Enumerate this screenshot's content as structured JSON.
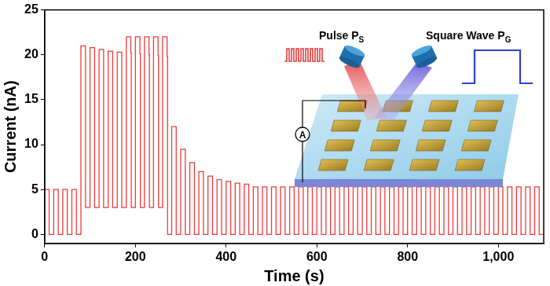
{
  "chart_data": {
    "type": "line",
    "x_label": "Time (s)",
    "y_label": "Current (nA)",
    "color": "#ee3b3b",
    "line_style": "steps",
    "grid": false,
    "xlim": [
      0,
      1100
    ],
    "xticks": [
      0,
      200,
      400,
      600,
      800,
      1000
    ],
    "ylim": [
      -1,
      25
    ],
    "yticks": [
      0,
      5,
      10,
      15,
      20,
      25
    ],
    "annotations": [
      {
        "text": "Pulse P",
        "subscript": "S"
      },
      {
        "text": "Square Wave P",
        "subscript": "G"
      },
      {
        "text": "A"
      }
    ],
    "x": [
      0,
      10,
      20,
      30,
      40,
      50,
      60,
      70,
      80,
      90,
      100,
      110,
      120,
      130,
      140,
      150,
      160,
      170,
      180,
      190,
      191,
      200,
      210,
      211,
      220,
      230,
      231,
      240,
      250,
      251,
      260,
      270,
      271,
      280,
      290,
      300,
      310,
      320,
      330,
      340,
      350,
      360,
      370,
      380,
      390,
      400,
      410,
      420,
      430,
      440,
      450,
      460,
      470,
      480,
      490,
      500,
      510,
      520,
      530,
      540,
      550,
      560,
      570,
      580,
      590,
      600,
      610,
      620,
      630,
      640,
      650,
      660,
      670,
      680,
      690,
      700,
      710,
      720,
      730,
      740,
      750,
      760,
      770,
      780,
      790,
      800,
      810,
      820,
      830,
      840,
      850,
      860,
      870,
      880,
      890,
      900,
      910,
      920,
      930,
      940,
      950,
      960,
      970,
      980,
      990,
      1000,
      1010,
      1020,
      1030,
      1040,
      1050,
      1060,
      1070,
      1080,
      1090,
      1100
    ],
    "values": [
      0,
      5,
      0,
      5,
      0,
      5,
      0,
      5,
      0,
      21,
      3,
      20.8,
      3,
      20.6,
      3,
      20.4,
      3,
      20.3,
      3,
      22,
      20.2,
      3,
      22,
      20.1,
      3,
      22,
      20.0,
      3,
      22,
      19.9,
      3,
      22,
      19.8,
      0,
      12,
      0,
      9.5,
      0,
      8,
      0,
      7,
      0,
      6.5,
      0,
      6.1,
      0,
      5.9,
      0,
      5.7,
      0,
      5.6,
      0,
      5.3,
      0,
      5.3,
      0,
      5.3,
      0,
      5.3,
      0,
      5.3,
      0,
      5.3,
      0,
      5.3,
      0,
      5.3,
      0,
      5.3,
      0,
      5.3,
      0,
      5.3,
      0,
      5.3,
      0,
      5.3,
      0,
      5.3,
      0,
      5.3,
      0,
      5.3,
      0,
      5.3,
      0,
      5.3,
      0,
      5.3,
      0,
      5.3,
      0,
      5.3,
      0,
      5.3,
      0,
      5.3,
      0,
      5.3,
      0,
      5.3,
      0,
      5.3,
      0,
      5.3,
      0,
      5.3,
      0,
      5.3,
      0,
      5.3,
      0,
      5.3,
      0,
      5.3,
      0
    ]
  }
}
